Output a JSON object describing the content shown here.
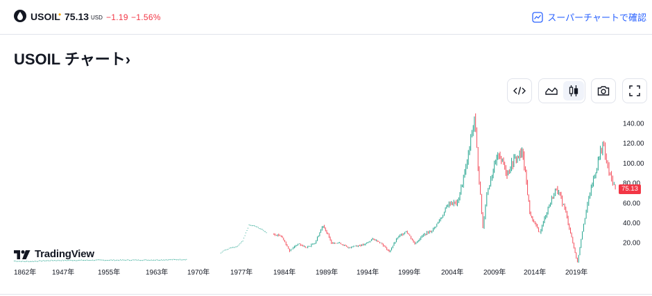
{
  "header": {
    "symbol": "USOIL",
    "dot": "•",
    "price": "75.13",
    "currency": "USD",
    "change": "−1.19",
    "change_pct": "−1.56%",
    "super_chart_link": "スーパーチャートで確認",
    "down_color": "#f23645",
    "link_color": "#2962ff"
  },
  "title": "USOIL チャート",
  "title_chevron": "›",
  "toolbar": {
    "embed_icon": "code-icon",
    "area_icon": "area-chart-icon",
    "candle_icon": "candlestick-icon",
    "camera_icon": "camera-icon",
    "fullscreen_icon": "fullscreen-icon",
    "active": "candlestick"
  },
  "logo": {
    "text": "TradingView"
  },
  "last_price_label": "75.13",
  "chart_data": {
    "type": "candlestick",
    "x_tick_labels": [
      "1862年",
      "1947年",
      "1955年",
      "1963年",
      "1970年",
      "1977年",
      "1984年",
      "1989年",
      "1994年",
      "1999年",
      "2004年",
      "2009年",
      "2014年",
      "2019年"
    ],
    "y_tick_labels": [
      "140.00",
      "120.00",
      "100.00",
      "80.00",
      "60.00",
      "40.00",
      "20.00"
    ],
    "ylim": [
      0,
      150
    ],
    "up_color": "#089981",
    "down_color": "#f23645",
    "last_value": 75.13,
    "series": [
      {
        "segment": "1862–1970",
        "points": [
          [
            "1862",
            2
          ],
          [
            "1880",
            1.5
          ],
          [
            "1900",
            1.5
          ],
          [
            "1920",
            2
          ],
          [
            "1947",
            2.5
          ],
          [
            "1955",
            2.8
          ],
          [
            "1963",
            2.9
          ],
          [
            "1970",
            3.5
          ]
        ]
      },
      {
        "segment": "1973–1983",
        "points": [
          [
            "1973",
            10
          ],
          [
            "1974",
            12
          ],
          [
            "1975",
            13
          ],
          [
            "1976",
            14
          ],
          [
            "1977",
            15
          ],
          [
            "1978",
            16
          ],
          [
            "1979",
            22
          ],
          [
            "1980",
            38
          ],
          [
            "1981",
            37
          ],
          [
            "1982",
            34
          ],
          [
            "1983",
            30
          ]
        ]
      },
      {
        "segment": "1984–2023",
        "points": [
          [
            "1984",
            29
          ],
          [
            "1985",
            27
          ],
          [
            "1986",
            12
          ],
          [
            "1987",
            19
          ],
          [
            "1988",
            15
          ],
          [
            "1989",
            20
          ],
          [
            "1990",
            38
          ],
          [
            "1991",
            20
          ],
          [
            "1992",
            20
          ],
          [
            "1993",
            15
          ],
          [
            "1994",
            17
          ],
          [
            "1995",
            18
          ],
          [
            "1996",
            24
          ],
          [
            "1997",
            20
          ],
          [
            "1998",
            11
          ],
          [
            "1999",
            25
          ],
          [
            "2000",
            32
          ],
          [
            "2001",
            19
          ],
          [
            "2002",
            28
          ],
          [
            "2003",
            32
          ],
          [
            "2004",
            44
          ],
          [
            "2005",
            60
          ],
          [
            "2006",
            60
          ],
          [
            "2007",
            95
          ],
          [
            "2008",
            145
          ],
          [
            "2009",
            35
          ],
          [
            "2009.5",
            70
          ],
          [
            "2010",
            85
          ],
          [
            "2011",
            110
          ],
          [
            "2012",
            90
          ],
          [
            "2013",
            105
          ],
          [
            "2014",
            110
          ],
          [
            "2014.8",
            50
          ],
          [
            "2015",
            45
          ],
          [
            "2016",
            30
          ],
          [
            "2017",
            55
          ],
          [
            "2018",
            75
          ],
          [
            "2019",
            55
          ],
          [
            "2020",
            0
          ],
          [
            "2020.5",
            40
          ],
          [
            "2021",
            70
          ],
          [
            "2022",
            120
          ],
          [
            "2022.5",
            90
          ],
          [
            "2023",
            75
          ]
        ]
      }
    ]
  }
}
